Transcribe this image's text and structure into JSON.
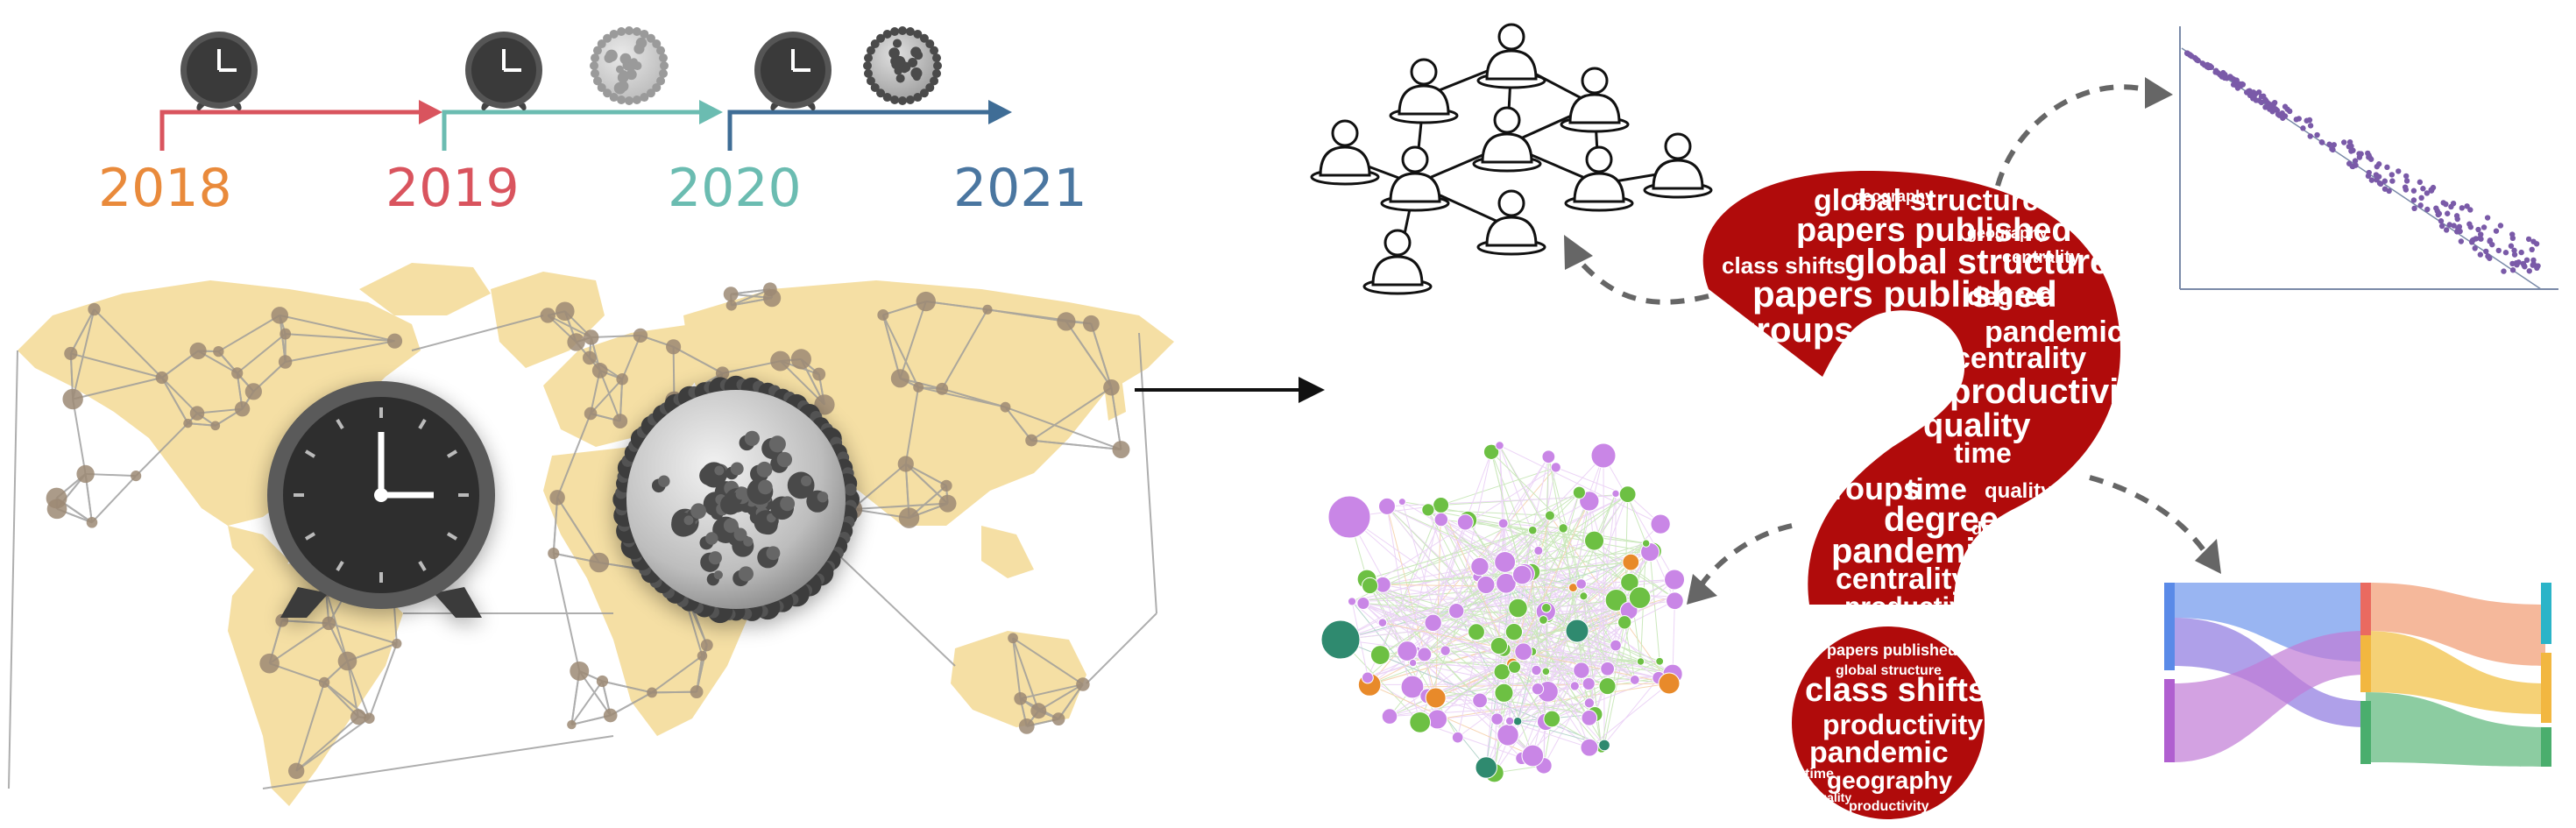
{
  "timeline": {
    "years": [
      {
        "label": "2018",
        "color": "#e98a3b"
      },
      {
        "label": "2019",
        "color": "#d9545e"
      },
      {
        "label": "2020",
        "color": "#6bbcb1"
      },
      {
        "label": "2021",
        "color": "#4a76a0"
      }
    ],
    "arrow_colors": [
      "#d9545e",
      "#6bbcb1",
      "#3f6d96"
    ]
  },
  "colors": {
    "map_land": "#f5dfa4",
    "network_node": "#9c8a74",
    "network_edge": "#9a9a9a",
    "question_mark": "#b00b0b",
    "scatter_points": "#7a5aa8",
    "arrow_dashed": "#666666",
    "arrow_solid": "#111111"
  },
  "wordcloud_question": [
    "global structure",
    "papers published",
    "geography",
    "class shifts",
    "global structure",
    "centrality",
    "papers published",
    "degree",
    "groups",
    "pandemic",
    "centrality",
    "productivity",
    "quality",
    "time",
    "groups",
    "time",
    "degree",
    "quality",
    "pandemic",
    "centrality",
    "productivity",
    "degree",
    "geography"
  ],
  "wordcloud_dot": [
    "papers published",
    "global structure",
    "class shifts",
    "productivity",
    "pandemic",
    "geography",
    "time",
    "quality",
    "productivity"
  ],
  "icons": [
    "clock-icon",
    "virus-icon",
    "people-network-icon",
    "scatter-plot-icon",
    "sankey-diagram-icon",
    "graph-network-icon"
  ]
}
